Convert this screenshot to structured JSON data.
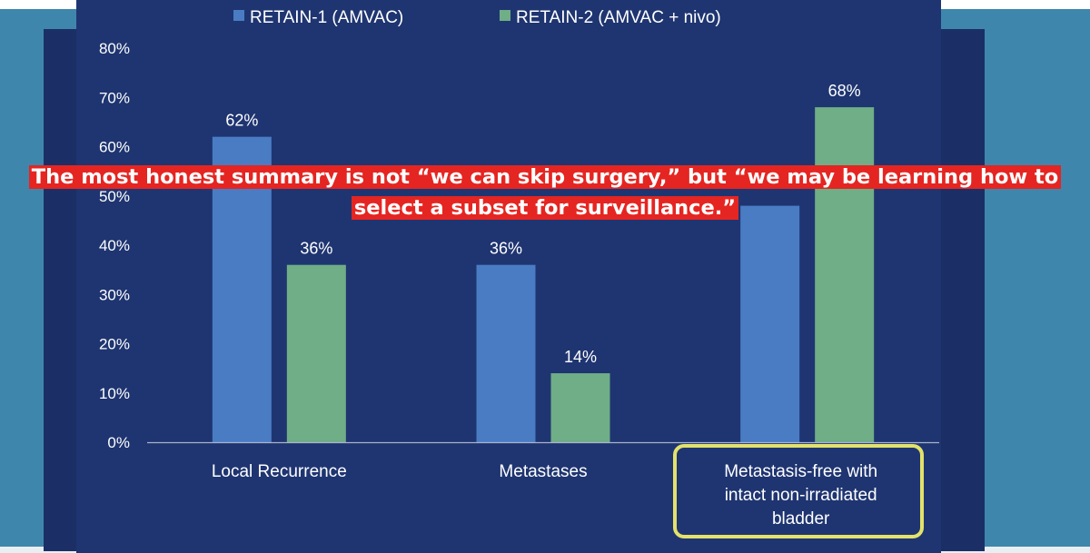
{
  "colors": {
    "series1": "#4a7cc4",
    "series2": "#6fae86",
    "slide": "#1f3571",
    "highlight": "#e3e26a",
    "caption_bg": "#e52521"
  },
  "caption": {
    "line1": "The most honest summary is not “we can skip surgery,” but “we may be learning how to",
    "line2": "select a subset for surveillance.”"
  },
  "chart_data": {
    "type": "bar",
    "categories": [
      "Local Recurrence",
      "Metastases",
      "Metastasis-free with intact non-irradiated bladder"
    ],
    "category_lines": [
      [
        "Local Recurrence"
      ],
      [
        "Metastases"
      ],
      [
        "Metastasis-free with",
        "intact non-irradiated",
        "bladder"
      ]
    ],
    "series": [
      {
        "name": "RETAIN-1 (AMVAC)",
        "values": [
          62,
          36,
          48
        ],
        "labels": [
          "62%",
          "36%",
          ""
        ]
      },
      {
        "name": "RETAIN-2 (AMVAC + nivo)",
        "values": [
          36,
          14,
          68
        ],
        "labels": [
          "36%",
          "14%",
          "68%"
        ]
      }
    ],
    "ylim": [
      0,
      80
    ],
    "yticks": [
      "0%",
      "10%",
      "20%",
      "30%",
      "40%",
      "50%",
      "60%",
      "70%",
      "80%"
    ],
    "legend_position": "top",
    "highlighted_category": "Metastasis-free with intact non-irradiated bladder"
  }
}
